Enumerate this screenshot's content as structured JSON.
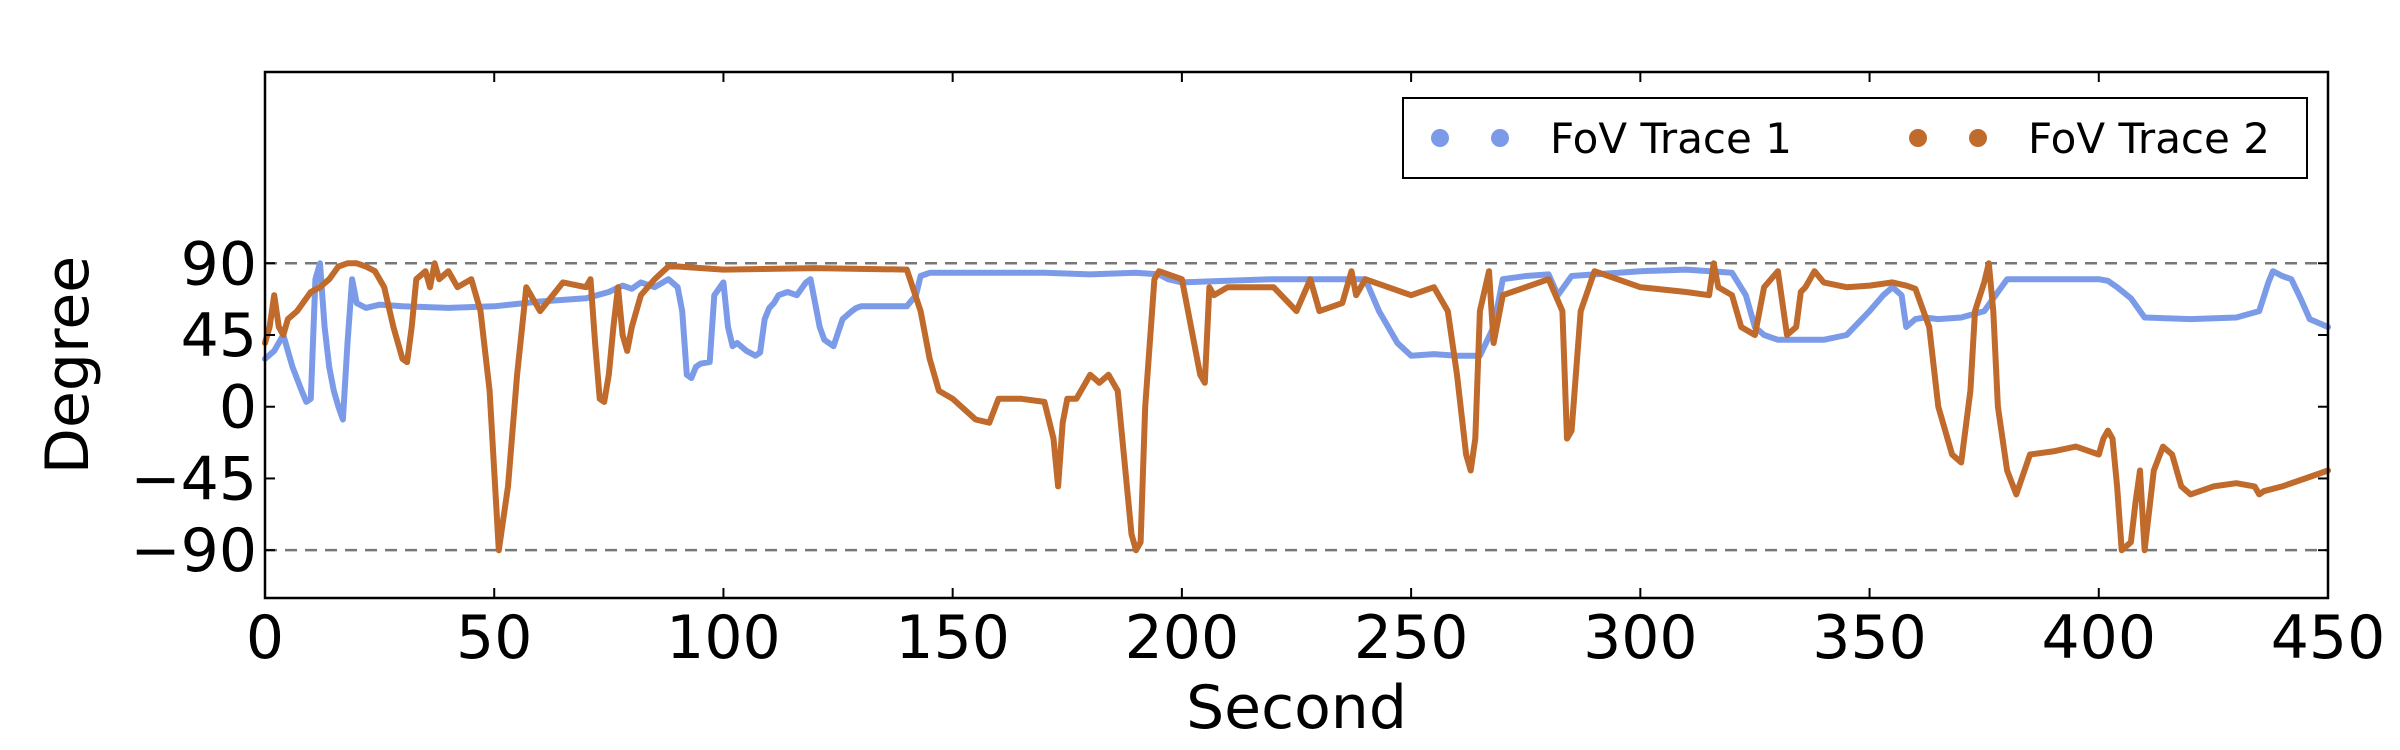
{
  "chart_data": {
    "type": "line",
    "xlabel": "Second",
    "ylabel": "Degree",
    "xlim": [
      0,
      450
    ],
    "ylim": [
      -120,
      210
    ],
    "xticks": [
      0,
      50,
      100,
      150,
      200,
      250,
      300,
      350,
      400,
      450
    ],
    "yticks": [
      90,
      45,
      0,
      -45,
      -90
    ],
    "ytick_labels": [
      "90",
      "45",
      "0",
      "−45",
      "−90"
    ],
    "reference_lines": [
      90,
      -90
    ],
    "grid": false,
    "legend": {
      "placement": "top-right",
      "columns": 2
    },
    "series": [
      {
        "name": "FoV Trace 1",
        "color": "#7b9be8",
        "x": [
          0,
          2,
          4,
          6,
          8,
          9,
          10,
          11,
          12,
          13,
          14,
          15,
          16,
          17,
          18,
          19,
          20,
          22,
          25,
          30,
          40,
          50,
          60,
          70,
          75,
          78,
          80,
          82,
          85,
          88,
          90,
          91,
          92,
          93,
          94,
          95,
          97,
          98,
          100,
          101,
          102,
          103,
          105,
          107,
          108,
          109,
          110,
          111,
          112,
          114,
          116,
          118,
          119,
          120,
          121,
          122,
          124,
          126,
          128,
          129,
          130,
          132,
          135,
          140,
          142,
          143,
          145,
          150,
          160,
          170,
          180,
          190,
          195,
          197,
          200,
          210,
          220,
          230,
          240,
          243,
          245,
          247,
          250,
          255,
          260,
          265,
          268,
          270,
          275,
          280,
          282,
          285,
          290,
          300,
          310,
          320,
          323,
          325,
          327,
          330,
          340,
          345,
          350,
          353,
          355,
          357,
          358,
          360,
          362,
          365,
          370,
          375,
          380,
          390,
          400,
          402,
          404,
          407,
          410,
          420,
          430,
          435,
          437,
          438,
          440,
          442,
          444,
          446,
          450
        ],
        "y": [
          30,
          35,
          45,
          25,
          10,
          3,
          5,
          80,
          90,
          50,
          25,
          10,
          0,
          -8,
          40,
          80,
          65,
          62,
          64,
          63,
          62,
          63,
          66,
          68,
          72,
          76,
          74,
          78,
          75,
          80,
          75,
          60,
          20,
          18,
          25,
          27,
          28,
          70,
          78,
          50,
          38,
          40,
          35,
          32,
          34,
          55,
          62,
          65,
          70,
          72,
          70,
          78,
          80,
          65,
          50,
          42,
          38,
          55,
          60,
          62,
          63,
          63,
          63,
          63,
          70,
          82,
          84,
          84,
          84,
          84,
          83,
          84,
          83,
          80,
          78,
          79,
          80,
          80,
          80,
          60,
          50,
          40,
          32,
          33,
          32,
          32,
          50,
          80,
          82,
          83,
          70,
          82,
          83,
          85,
          86,
          84,
          70,
          50,
          45,
          42,
          42,
          45,
          60,
          70,
          75,
          70,
          50,
          55,
          56,
          55,
          56,
          60,
          80,
          80,
          80,
          79,
          75,
          68,
          56,
          55,
          56,
          60,
          78,
          85,
          82,
          80,
          68,
          55,
          50
        ]
      },
      {
        "name": "FoV Trace 2",
        "color": "#c06a2c",
        "x": [
          0,
          1,
          2,
          3,
          4,
          5,
          7,
          10,
          12,
          14,
          16,
          18,
          20,
          22,
          24,
          26,
          28,
          30,
          31,
          32,
          33,
          35,
          36,
          37,
          38,
          40,
          42,
          45,
          47,
          49,
          50,
          51,
          53,
          55,
          57,
          60,
          65,
          70,
          71,
          72,
          73,
          74,
          75,
          76,
          77,
          78,
          79,
          80,
          82,
          85,
          88,
          90,
          100,
          120,
          140,
          143,
          145,
          147,
          150,
          155,
          158,
          160,
          165,
          170,
          172,
          173,
          174,
          175,
          177,
          180,
          182,
          184,
          186,
          188,
          189,
          190,
          191,
          192,
          194,
          195,
          200,
          204,
          205,
          206,
          207,
          210,
          220,
          225,
          228,
          230,
          235,
          237,
          238,
          240,
          245,
          250,
          255,
          258,
          260,
          262,
          263,
          264,
          265,
          267,
          268,
          270,
          275,
          280,
          283,
          284,
          285,
          287,
          290,
          300,
          310,
          315,
          316,
          317,
          320,
          322,
          325,
          327,
          330,
          332,
          334,
          335,
          336,
          337,
          338,
          340,
          345,
          350,
          355,
          358,
          360,
          363,
          365,
          368,
          370,
          372,
          373,
          375,
          376,
          377,
          378,
          380,
          382,
          385,
          390,
          395,
          400,
          401,
          402,
          403,
          404,
          405,
          407,
          408,
          409,
          410,
          412,
          414,
          416,
          418,
          420,
          425,
          430,
          434,
          435,
          436,
          440,
          445,
          450
        ],
        "y": [
          40,
          50,
          70,
          50,
          45,
          55,
          60,
          72,
          75,
          80,
          88,
          90,
          90,
          88,
          85,
          75,
          50,
          30,
          28,
          50,
          80,
          85,
          75,
          90,
          80,
          85,
          75,
          80,
          60,
          10,
          -40,
          -90,
          -50,
          20,
          75,
          60,
          78,
          75,
          80,
          40,
          5,
          3,
          20,
          50,
          75,
          45,
          35,
          50,
          70,
          80,
          88,
          88,
          86,
          87,
          86,
          60,
          30,
          10,
          5,
          -8,
          -10,
          5,
          5,
          3,
          -20,
          -50,
          -10,
          5,
          5,
          20,
          15,
          20,
          10,
          -50,
          -80,
          -90,
          -85,
          0,
          80,
          85,
          80,
          20,
          15,
          75,
          70,
          75,
          75,
          60,
          80,
          60,
          65,
          85,
          70,
          80,
          75,
          70,
          75,
          60,
          20,
          -30,
          -40,
          -20,
          60,
          85,
          40,
          70,
          75,
          80,
          60,
          -20,
          -15,
          60,
          85,
          75,
          72,
          70,
          90,
          75,
          70,
          50,
          45,
          75,
          85,
          45,
          50,
          72,
          75,
          80,
          85,
          78,
          75,
          76,
          78,
          76,
          74,
          50,
          0,
          -30,
          -35,
          10,
          60,
          78,
          90,
          60,
          0,
          -40,
          -55,
          -30,
          -28,
          -25,
          -30,
          -20,
          -15,
          -20,
          -50,
          -90,
          -85,
          -60,
          -40,
          -90,
          -40,
          -25,
          -30,
          -50,
          -55,
          -50,
          -48,
          -50,
          -55,
          -53,
          -50,
          -45,
          -40
        ]
      }
    ]
  }
}
